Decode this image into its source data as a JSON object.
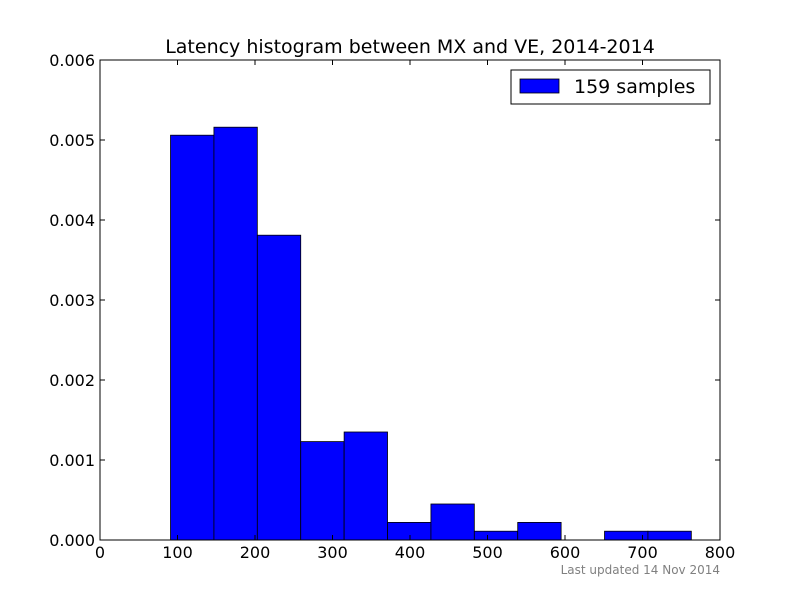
{
  "chart_data": {
    "type": "bar",
    "title": "Latency histogram between MX and VE, 2014-2014",
    "xlabel": "",
    "ylabel": "",
    "xlim": [
      0,
      800
    ],
    "ylim": [
      0,
      0.006
    ],
    "x_ticks": [
      "0",
      "100",
      "200",
      "300",
      "400",
      "500",
      "600",
      "700",
      "800"
    ],
    "y_ticks": [
      "0.000",
      "0.001",
      "0.002",
      "0.003",
      "0.004",
      "0.005",
      "0.006"
    ],
    "bins": [
      {
        "x0": 91,
        "x1": 147,
        "value": 0.00506
      },
      {
        "x0": 147,
        "x1": 203,
        "value": 0.00516
      },
      {
        "x0": 203,
        "x1": 259,
        "value": 0.00381
      },
      {
        "x0": 259,
        "x1": 315,
        "value": 0.00123
      },
      {
        "x0": 315,
        "x1": 371,
        "value": 0.00135
      },
      {
        "x0": 371,
        "x1": 427,
        "value": 0.00022
      },
      {
        "x0": 427,
        "x1": 483,
        "value": 0.00045
      },
      {
        "x0": 483,
        "x1": 539,
        "value": 0.00011
      },
      {
        "x0": 539,
        "x1": 595,
        "value": 0.00022
      },
      {
        "x0": 595,
        "x1": 651,
        "value": 0
      },
      {
        "x0": 651,
        "x1": 707,
        "value": 0.00011
      },
      {
        "x0": 707,
        "x1": 763,
        "value": 0.00011
      }
    ],
    "series": [
      {
        "name": "159 samples",
        "color": "#0000ff"
      }
    ],
    "legend_position": "top-right",
    "grid": false
  },
  "footnote": "Last updated 14 Nov 2014"
}
